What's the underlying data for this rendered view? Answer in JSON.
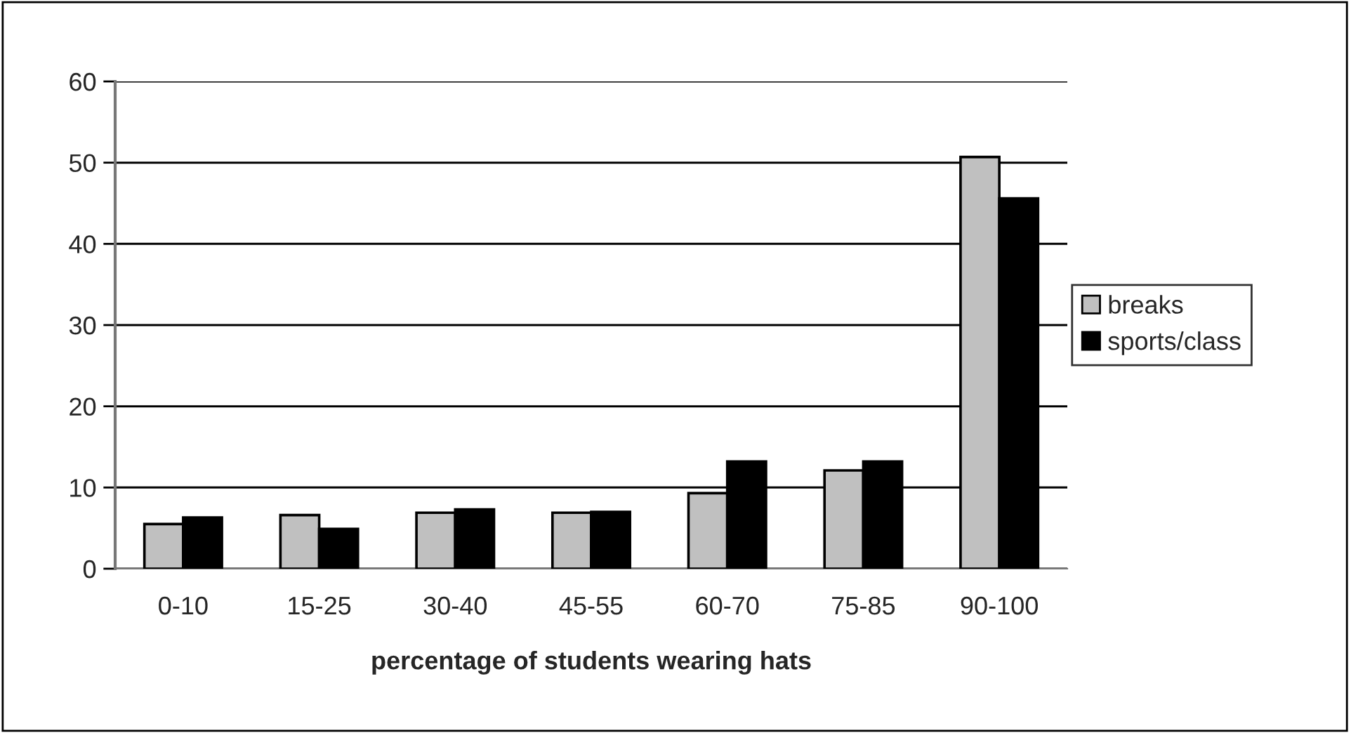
{
  "chart_data": {
    "type": "bar",
    "xlabel": "percentage of students wearing hats",
    "categories": [
      "0-10",
      "15-25",
      "30-40",
      "45-55",
      "60-70",
      "75-85",
      "90-100"
    ],
    "series": [
      {
        "name": "breaks",
        "color": "#c0c0c0",
        "values": [
          5.5,
          6.6,
          6.9,
          6.9,
          9.3,
          12.1,
          50.7
        ]
      },
      {
        "name": "sports/class",
        "color": "#000000",
        "values": [
          6.3,
          4.9,
          7.3,
          7.0,
          13.2,
          13.2,
          45.6
        ]
      }
    ],
    "ylim": [
      0,
      60
    ],
    "yticks": [
      0,
      10,
      20,
      30,
      40,
      50,
      60
    ],
    "grid": "y",
    "legend": "right"
  }
}
